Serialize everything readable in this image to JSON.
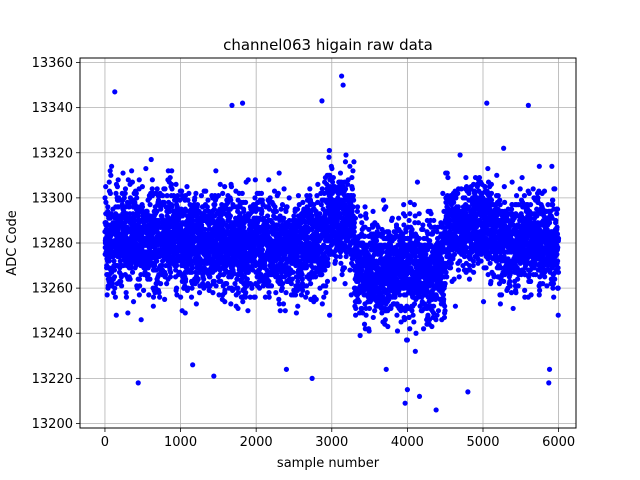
{
  "chart_data": {
    "type": "scatter",
    "title": "channel063 higain raw data",
    "xlabel": "sample number",
    "ylabel": "ADC Code",
    "xlim": [
      -330,
      6230
    ],
    "ylim": [
      13198,
      13362
    ],
    "xticks": [
      0,
      1000,
      2000,
      3000,
      4000,
      5000,
      6000
    ],
    "yticks": [
      13200,
      13220,
      13240,
      13260,
      13280,
      13300,
      13320,
      13340,
      13360
    ],
    "grid": true,
    "marker_color": "#0000ff",
    "n_samples": 6000,
    "sample_step": 1,
    "segments": [
      {
        "x": [
          0,
          1000
        ],
        "center": 13282,
        "spread": 18
      },
      {
        "x": [
          1000,
          2000
        ],
        "center": 13280,
        "spread": 17
      },
      {
        "x": [
          2000,
          2900
        ],
        "center": 13279,
        "spread": 17
      },
      {
        "x": [
          2900,
          3300
        ],
        "center": 13290,
        "spread": 17
      },
      {
        "x": [
          3300,
          4500
        ],
        "center": 13268,
        "spread": 18
      },
      {
        "x": [
          4500,
          5200
        ],
        "center": 13286,
        "spread": 17
      },
      {
        "x": [
          5200,
          6000
        ],
        "center": 13280,
        "spread": 17
      }
    ],
    "notable_points": [
      {
        "x": 130,
        "y": 13347
      },
      {
        "x": 3130,
        "y": 13354
      },
      {
        "x": 3150,
        "y": 13350
      },
      {
        "x": 2870,
        "y": 13343
      },
      {
        "x": 5050,
        "y": 13342
      },
      {
        "x": 5600,
        "y": 13341
      },
      {
        "x": 1820,
        "y": 13342
      },
      {
        "x": 1680,
        "y": 13341
      },
      {
        "x": 4380,
        "y": 13206
      },
      {
        "x": 3970,
        "y": 13209
      },
      {
        "x": 4000,
        "y": 13215
      },
      {
        "x": 4160,
        "y": 13212
      },
      {
        "x": 3720,
        "y": 13224
      },
      {
        "x": 4800,
        "y": 13214
      },
      {
        "x": 440,
        "y": 13218
      },
      {
        "x": 2740,
        "y": 13220
      },
      {
        "x": 1440,
        "y": 13221
      },
      {
        "x": 5870,
        "y": 13218
      },
      {
        "x": 5880,
        "y": 13224
      },
      {
        "x": 2400,
        "y": 13224
      },
      {
        "x": 1160,
        "y": 13226
      }
    ]
  }
}
